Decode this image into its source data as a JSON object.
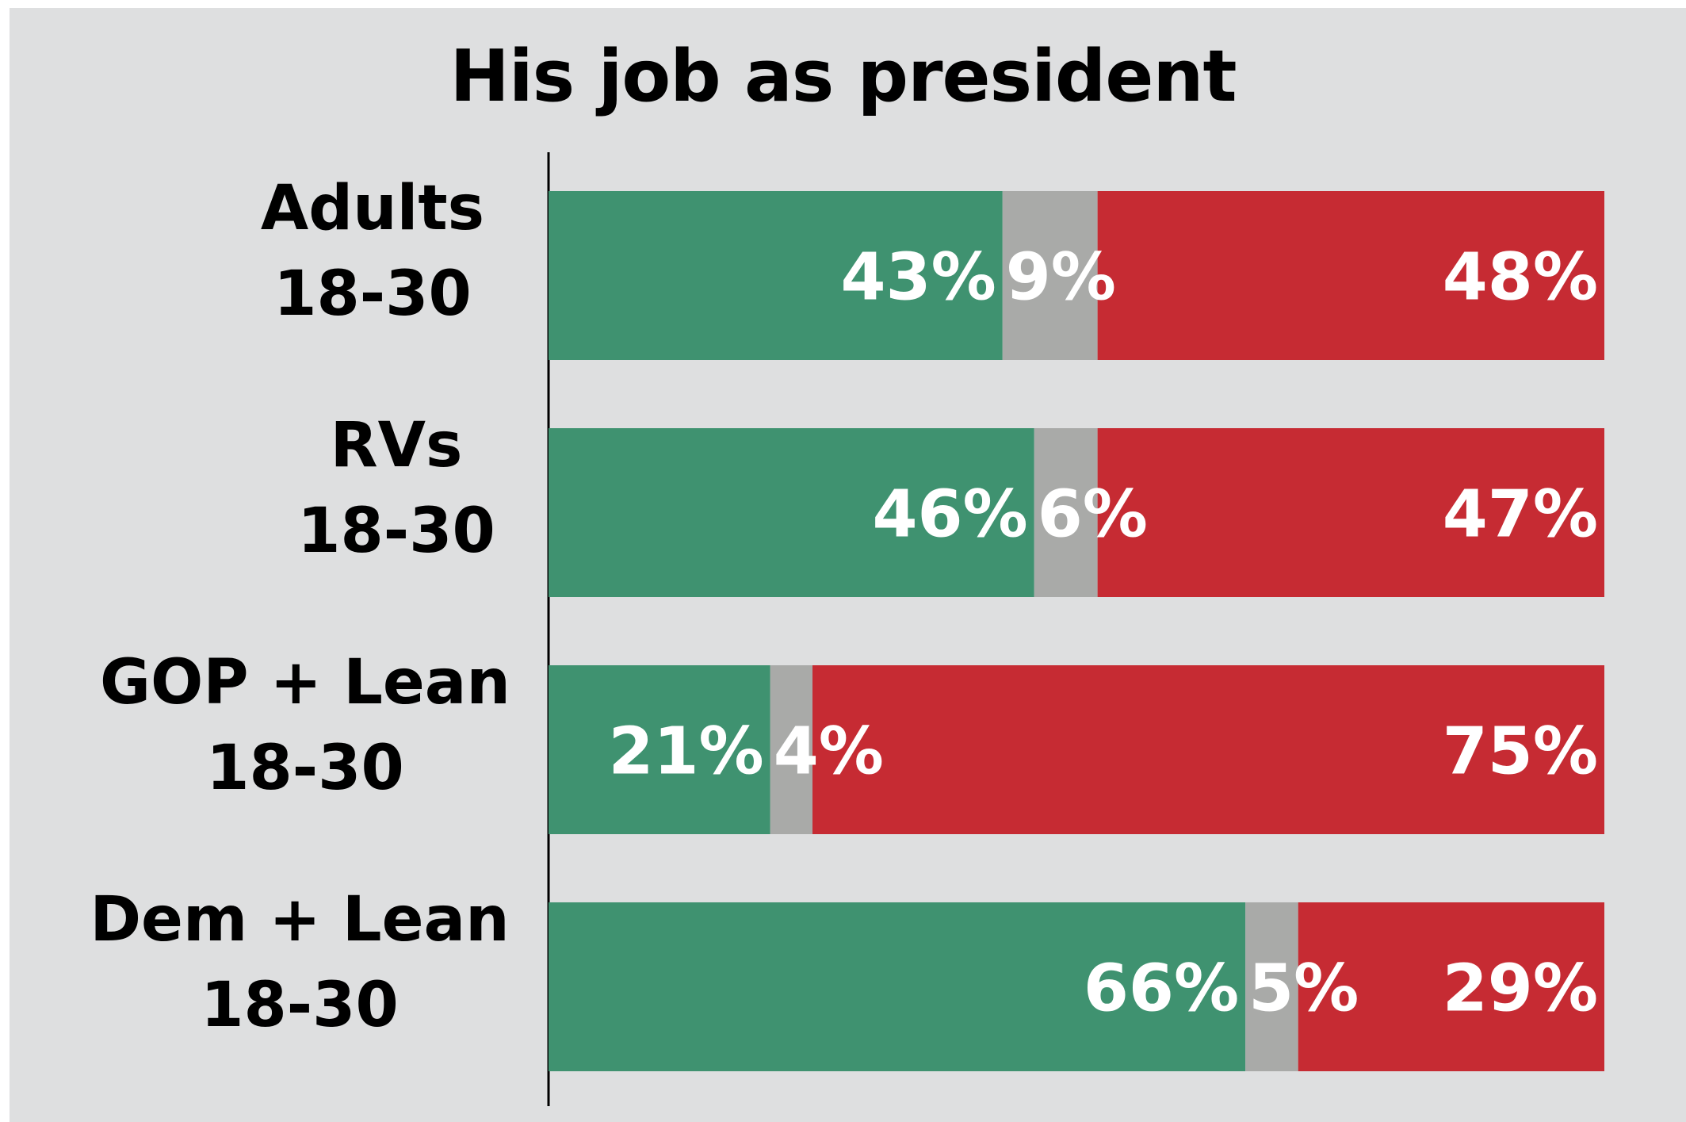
{
  "chart_data": {
    "type": "bar",
    "stacked": true,
    "orientation": "horizontal",
    "title": "His job as president",
    "categories": [
      [
        "Adults",
        "18-30"
      ],
      [
        "RVs",
        "18-30"
      ],
      [
        "GOP + Lean",
        "18-30"
      ],
      [
        "Dem + Lean",
        "18-30"
      ]
    ],
    "series": [
      {
        "values": [
          43,
          46,
          21,
          66
        ],
        "color": "#3f9270"
      },
      {
        "values": [
          9,
          6,
          4,
          5
        ],
        "color": "#a9aaa8"
      },
      {
        "values": [
          48,
          47,
          75,
          29
        ],
        "color": "#c62b33"
      }
    ],
    "value_labels": [
      [
        "43%",
        "9%",
        "48%"
      ],
      [
        "46%",
        "6%",
        "47%"
      ],
      [
        "21%",
        "4%",
        "75%"
      ],
      [
        "66%",
        "5%",
        "29%"
      ]
    ],
    "xlim": [
      0,
      100
    ],
    "grid": false,
    "legend": "none"
  }
}
